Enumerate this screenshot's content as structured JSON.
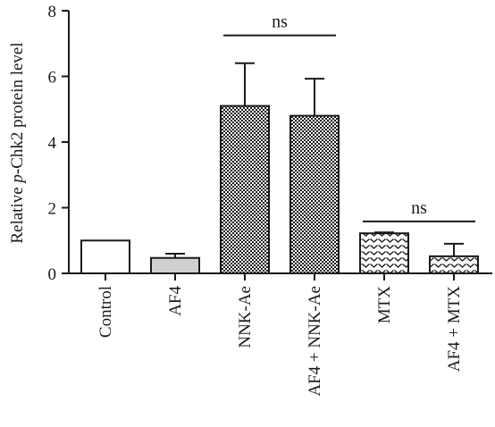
{
  "chart_data": {
    "type": "bar",
    "ylabel_parts": [
      "Relative ",
      "p",
      "-Chk2 protein level"
    ],
    "ylim": [
      0,
      8
    ],
    "yticks": [
      "0",
      "2",
      "4",
      "6",
      "8"
    ],
    "categories": [
      "Control",
      "AF4",
      "NNK-Ae",
      "AF4 + NNK-Ae",
      "MTX",
      "AF4 + MTX"
    ],
    "values": [
      1.0,
      0.47,
      5.1,
      4.8,
      1.22,
      0.52
    ],
    "errors": [
      0.0,
      0.13,
      1.3,
      1.13,
      0.03,
      0.38
    ],
    "fills": [
      "white",
      "lightgray",
      "checker",
      "checker",
      "chevron",
      "chevron"
    ],
    "significance": [
      {
        "from": 2,
        "to": 3,
        "y": 7.25,
        "label": "ns"
      },
      {
        "from": 4,
        "to": 5,
        "y": 1.58,
        "label": "ns"
      }
    ],
    "colors": {
      "ink": "#1a1a1a",
      "light_fill": "#d0d0d0",
      "background": "#ffffff"
    }
  }
}
